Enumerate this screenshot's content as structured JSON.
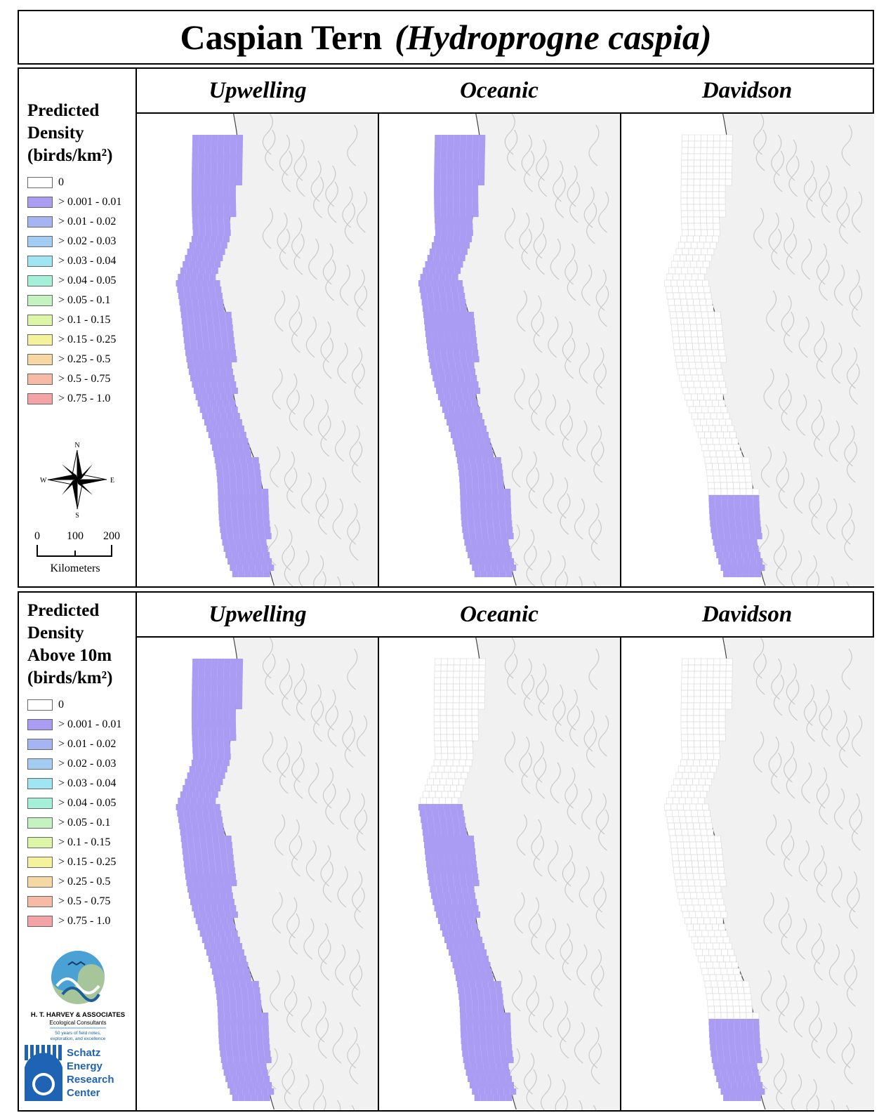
{
  "title": {
    "common_name": "Caspian Tern",
    "scientific_name": "(Hydroprogne caspia)"
  },
  "panels": [
    {
      "legend_title": "Predicted\nDensity\n(birds/km²)",
      "columns": [
        "Upwelling",
        "Oceanic",
        "Davidson"
      ]
    },
    {
      "legend_title": "Predicted\nDensity\nAbove 10m\n(birds/km²)",
      "columns": [
        "Upwelling",
        "Oceanic",
        "Davidson"
      ]
    }
  ],
  "legend": {
    "classes": [
      {
        "label": "0",
        "color": "#ffffff"
      },
      {
        "label": "> 0.001 - 0.01",
        "color": "#a99cf2"
      },
      {
        "label": "> 0.01 - 0.02",
        "color": "#a7b4f2"
      },
      {
        "label": "> 0.02 - 0.03",
        "color": "#a4cdf5"
      },
      {
        "label": "> 0.03 - 0.04",
        "color": "#9fe6f2"
      },
      {
        "label": "> 0.04 - 0.05",
        "color": "#a5f0d8"
      },
      {
        "label": "> 0.05 - 0.1",
        "color": "#c4f2c0"
      },
      {
        "label": "> 0.1 - 0.15",
        "color": "#ddf5a6"
      },
      {
        "label": "> 0.15 - 0.25",
        "color": "#f4f29a"
      },
      {
        "label": "> 0.25 - 0.5",
        "color": "#f7d8a3"
      },
      {
        "label": "> 0.5 - 0.75",
        "color": "#f6baa5"
      },
      {
        "label": "> 0.75 - 1.0",
        "color": "#f3a3a6"
      }
    ]
  },
  "compass": {
    "n": "N",
    "s": "S",
    "e": "E",
    "w": "W"
  },
  "scale_bar": {
    "ticks": [
      "0",
      "100",
      "200"
    ],
    "unit": "Kilometers"
  },
  "logos": {
    "harvey_name": "H. T. HARVEY & ASSOCIATES",
    "harvey_sub": "Ecological Consultants",
    "harvey_tag1": "50 years of field notes,",
    "harvey_tag2": "exploration, and excellence",
    "schatz_lines": [
      "Schatz",
      "Energy",
      "Research",
      "Center"
    ]
  },
  "colors": {
    "density_fill": "#a99cf2",
    "grid_empty": "#d8d8d8",
    "coast": "#444444",
    "terrain": "#e6e6e6"
  }
}
